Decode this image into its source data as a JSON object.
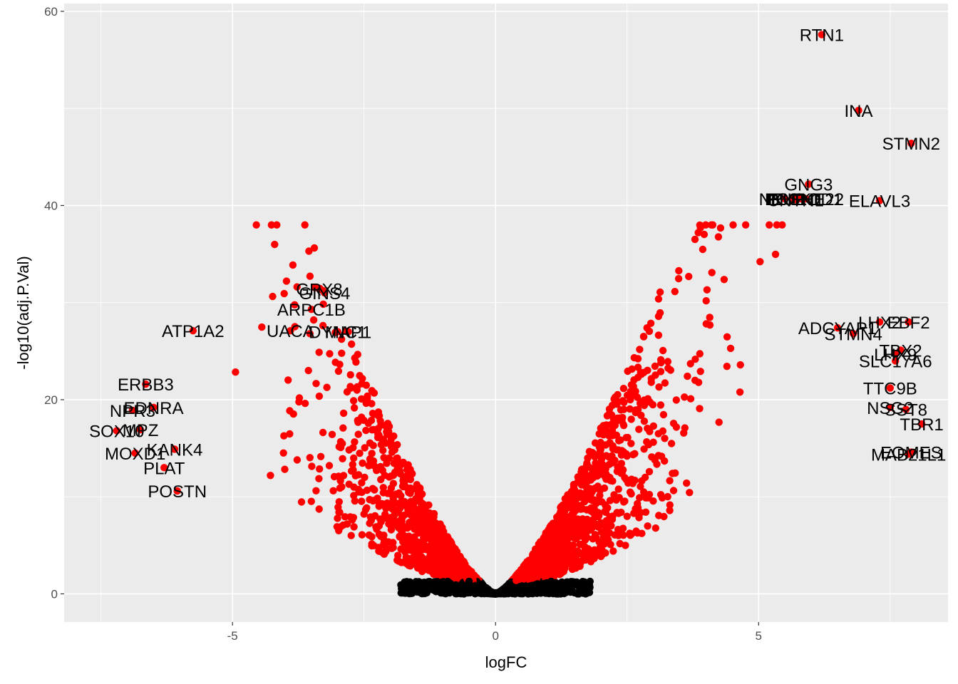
{
  "chart_data": {
    "type": "scatter",
    "xlabel": "logFC",
    "ylabel": "-log10(adj.P.Val)",
    "xlim": [
      -8.2,
      8.6
    ],
    "ylim": [
      -2.9,
      60.8
    ],
    "x_ticks": [
      -5,
      0,
      5
    ],
    "x_tick_labels": [
      "-5",
      "0",
      "5"
    ],
    "y_ticks": [
      0,
      20,
      40,
      60
    ],
    "y_tick_labels": [
      "0",
      "20",
      "40",
      "60"
    ],
    "grid": true,
    "significant_color": "#ff0000",
    "nonsignificant_color": "#000000",
    "panel_background": "#ebebeb",
    "labeled_points": [
      {
        "label": "RTN1",
        "x": 6.2,
        "y": 57.6
      },
      {
        "label": "INA",
        "x": 6.9,
        "y": 49.8
      },
      {
        "label": "STMN2",
        "x": 7.9,
        "y": 46.4
      },
      {
        "label": "GNG3",
        "x": 5.95,
        "y": 42.2
      },
      {
        "label": "ELAVL3",
        "x": 7.3,
        "y": 40.5
      },
      {
        "label": "IRX2",
        "x": 5.5,
        "y": 40.7
      },
      {
        "label": "PCSK1",
        "x": 5.65,
        "y": 40.7
      },
      {
        "label": "NEUROD1",
        "x": 5.8,
        "y": 40.7
      },
      {
        "label": "CNTN1",
        "x": 5.7,
        "y": 40.6
      },
      {
        "label": "BHLHE22",
        "x": 5.9,
        "y": 40.7
      },
      {
        "label": "LHX2",
        "x": 7.3,
        "y": 28.0
      },
      {
        "label": "EBF2",
        "x": 7.85,
        "y": 28.0
      },
      {
        "label": "ADCYAP1",
        "x": 6.5,
        "y": 27.4
      },
      {
        "label": "STMN4",
        "x": 6.8,
        "y": 26.8
      },
      {
        "label": "TBX2",
        "x": 7.7,
        "y": 25.1
      },
      {
        "label": "LHX9",
        "x": 7.6,
        "y": 24.7
      },
      {
        "label": "SLC17A6",
        "x": 7.6,
        "y": 24.0
      },
      {
        "label": "TTC9B",
        "x": 7.5,
        "y": 21.2
      },
      {
        "label": "NSG2",
        "x": 7.5,
        "y": 19.2
      },
      {
        "label": "SST8",
        "x": 7.8,
        "y": 19.0
      },
      {
        "label": "TBR1",
        "x": 8.1,
        "y": 17.5
      },
      {
        "label": "EOMES",
        "x": 7.9,
        "y": 14.6
      },
      {
        "label": "MAB21L1",
        "x": 7.85,
        "y": 14.4
      },
      {
        "label": "GRX8",
        "x": -3.35,
        "y": 31.4
      },
      {
        "label": "GINS4",
        "x": -3.25,
        "y": 31.0
      },
      {
        "label": "ARPC1B",
        "x": -3.5,
        "y": 29.3
      },
      {
        "label": "UACA",
        "x": -3.9,
        "y": 27.1
      },
      {
        "label": "DYNC1",
        "x": -3.0,
        "y": 27.0
      },
      {
        "label": "MAP1",
        "x": -2.8,
        "y": 27.0
      },
      {
        "label": "ATP1A2",
        "x": -5.75,
        "y": 27.1
      },
      {
        "label": "ERBB3",
        "x": -6.65,
        "y": 21.6
      },
      {
        "label": "EDNRA",
        "x": -6.5,
        "y": 19.2
      },
      {
        "label": "NPR3",
        "x": -6.9,
        "y": 18.9
      },
      {
        "label": "MPZ",
        "x": -6.75,
        "y": 16.9
      },
      {
        "label": "SOX10",
        "x": -7.2,
        "y": 16.8
      },
      {
        "label": "KANK4",
        "x": -6.1,
        "y": 14.9
      },
      {
        "label": "MOXD1",
        "x": -6.85,
        "y": 14.5
      },
      {
        "label": "PLAT",
        "x": -6.3,
        "y": 13.0
      },
      {
        "label": "POSTN",
        "x": -6.05,
        "y": 10.6
      }
    ]
  }
}
